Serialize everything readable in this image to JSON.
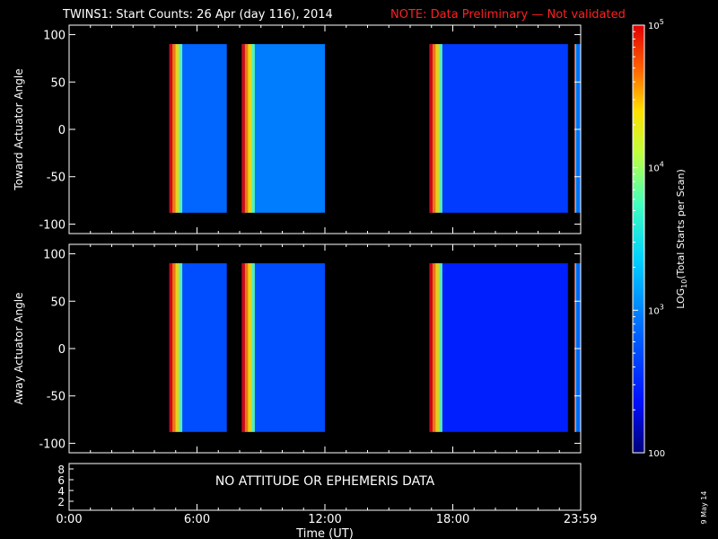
{
  "title": "TWINS1: Start Counts: 26 Apr (day 116), 2014",
  "note": "NOTE: Data Preliminary — Not validated",
  "panel_top": {
    "ylabel": "Toward Actuator Angle"
  },
  "panel_bottom": {
    "ylabel": "Away Actuator Angle"
  },
  "panel_ephem": {
    "message": "NO ATTITUDE OR EPHEMERIS DATA",
    "yticks": [
      "8",
      "6",
      "4",
      "2"
    ]
  },
  "colorbar": {
    "label": "LOG10(Total Starts per Scan)",
    "ticks": [
      {
        "value": 100,
        "label": "100"
      },
      {
        "value": 1000,
        "label": "10^3"
      },
      {
        "value": 10000,
        "label": "10^4"
      },
      {
        "value": 100000,
        "label": "10^5"
      }
    ]
  },
  "stamp": "9 May 14",
  "chart_data": [
    {
      "type": "heatmap",
      "title": "TWINS1: Start Counts: 26 Apr (day 116), 2014",
      "xlabel": "Time (UT)",
      "ylabel": "Toward Actuator Angle",
      "x_ticks": [
        "0:00",
        "6:00",
        "12:00",
        "18:00",
        "23:59"
      ],
      "y_ticks": [
        100,
        50,
        0,
        -50,
        -100
      ],
      "ylim": [
        -110,
        110
      ],
      "xlim_hours": [
        0,
        24
      ],
      "color_scale": "log",
      "crange": [
        100,
        100000
      ],
      "data_intervals_hours": [
        [
          4.7,
          7.4
        ],
        [
          8.1,
          12.0
        ],
        [
          16.9,
          23.4
        ],
        [
          23.7,
          24.0
        ]
      ],
      "angle_range": [
        -88,
        90
      ],
      "series": [
        {
          "name": "4.7-7.4 h",
          "level": 700
        },
        {
          "name": "8.1-12.0 h",
          "level": 900
        },
        {
          "name": "16.9-23.4 h",
          "level": 400
        },
        {
          "name": "23.7-24.0 h",
          "level": 800
        }
      ]
    },
    {
      "type": "heatmap",
      "xlabel": "Time (UT)",
      "ylabel": "Away Actuator Angle",
      "x_ticks": [
        "0:00",
        "6:00",
        "12:00",
        "18:00",
        "23:59"
      ],
      "y_ticks": [
        100,
        50,
        0,
        -50,
        -100
      ],
      "ylim": [
        -110,
        110
      ],
      "xlim_hours": [
        0,
        24
      ],
      "color_scale": "log",
      "crange": [
        100,
        100000
      ],
      "data_intervals_hours": [
        [
          4.7,
          7.4
        ],
        [
          8.1,
          12.0
        ],
        [
          16.9,
          23.4
        ],
        [
          23.7,
          24.0
        ]
      ],
      "angle_range": [
        -88,
        90
      ],
      "series": [
        {
          "name": "4.7-7.4 h",
          "level": 500
        },
        {
          "name": "8.1-12.0 h",
          "level": 500
        },
        {
          "name": "16.9-23.4 h",
          "level": 280
        },
        {
          "name": "23.7-24.0 h",
          "level": 700
        }
      ]
    }
  ],
  "colors": {
    "foreground": "#ffffff",
    "note": "#ff2020",
    "background": "#000000"
  }
}
